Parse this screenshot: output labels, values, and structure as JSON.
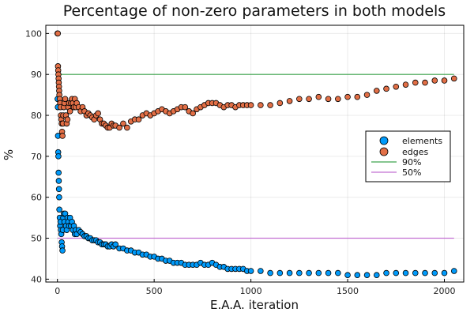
{
  "chart_data": {
    "type": "scatter",
    "title": "Percentage of non-zero parameters in both models",
    "xlabel": "E.A.A. iteration",
    "ylabel": "%",
    "xlim": [
      -60,
      2100
    ],
    "ylim": [
      39.3,
      102
    ],
    "xticks": [
      0,
      500,
      1000,
      1500,
      2000
    ],
    "yticks": [
      40,
      50,
      60,
      70,
      80,
      90,
      100
    ],
    "grid": true,
    "legend_position": "right",
    "series": [
      {
        "name": "elements",
        "kind": "scatter",
        "color": "#009AFA",
        "x": [
          1,
          1,
          2,
          3,
          4,
          5,
          6,
          7,
          8,
          9,
          10,
          12,
          14,
          16,
          18,
          20,
          22,
          24,
          26,
          28,
          30,
          33,
          36,
          40,
          44,
          48,
          52,
          56,
          60,
          65,
          70,
          75,
          80,
          85,
          90,
          95,
          100,
          110,
          120,
          130,
          140,
          150,
          160,
          170,
          180,
          190,
          200,
          210,
          220,
          230,
          240,
          250,
          260,
          270,
          280,
          290,
          300,
          320,
          340,
          360,
          380,
          400,
          420,
          440,
          460,
          480,
          500,
          520,
          540,
          560,
          580,
          600,
          620,
          640,
          660,
          680,
          700,
          720,
          740,
          760,
          780,
          800,
          820,
          840,
          860,
          880,
          900,
          920,
          940,
          960,
          980,
          1000,
          1050,
          1100,
          1150,
          1200,
          1250,
          1300,
          1350,
          1400,
          1450,
          1500,
          1550,
          1600,
          1650,
          1700,
          1750,
          1800,
          1850,
          1900,
          1950,
          2000,
          2050
        ],
        "y": [
          100,
          84,
          82,
          75,
          71,
          70,
          66,
          64,
          62,
          60,
          57,
          55,
          53,
          54,
          52,
          51,
          49,
          48,
          47,
          52,
          55,
          56,
          54,
          56,
          53,
          52,
          55,
          54,
          53,
          55,
          53,
          54,
          52,
          53,
          51,
          52,
          51,
          52,
          51.5,
          51,
          50.5,
          50.5,
          50,
          50,
          49.5,
          49.5,
          49.5,
          49,
          49,
          48.5,
          48.5,
          48.5,
          48,
          48,
          48.5,
          48,
          48.5,
          47.5,
          47.5,
          47,
          47,
          46.5,
          46.5,
          46,
          46,
          45.5,
          45.5,
          45,
          45,
          44.5,
          44.5,
          44,
          44,
          44,
          43.5,
          43.5,
          43.5,
          43.5,
          44,
          43.5,
          43.5,
          44,
          43.5,
          43,
          43,
          42.5,
          42.5,
          42.5,
          42.5,
          42.5,
          42,
          42,
          42,
          41.5,
          41.5,
          41.5,
          41.5,
          41.5,
          41.5,
          41.5,
          41.5,
          41,
          41,
          41,
          41,
          41.5,
          41.5,
          41.5,
          41.5,
          41.5,
          41.5,
          41.5,
          42
        ]
      },
      {
        "name": "edges",
        "kind": "scatter",
        "color": "#E26F46",
        "x": [
          1,
          2,
          3,
          4,
          5,
          6,
          7,
          8,
          9,
          10,
          12,
          14,
          16,
          18,
          20,
          22,
          24,
          26,
          28,
          30,
          33,
          36,
          40,
          44,
          48,
          52,
          56,
          60,
          65,
          70,
          75,
          80,
          85,
          90,
          95,
          100,
          110,
          120,
          130,
          140,
          150,
          160,
          170,
          180,
          190,
          200,
          210,
          220,
          230,
          240,
          250,
          260,
          270,
          280,
          290,
          300,
          320,
          340,
          360,
          380,
          400,
          420,
          440,
          460,
          480,
          500,
          520,
          540,
          560,
          580,
          600,
          620,
          640,
          660,
          680,
          700,
          720,
          740,
          760,
          780,
          800,
          820,
          840,
          860,
          880,
          900,
          920,
          940,
          960,
          980,
          1000,
          1050,
          1100,
          1150,
          1200,
          1250,
          1300,
          1350,
          1400,
          1450,
          1500,
          1550,
          1600,
          1650,
          1700,
          1750,
          1800,
          1850,
          1900,
          1950,
          2000,
          2050
        ],
        "y": [
          100,
          100,
          92,
          91,
          90,
          89,
          88,
          87,
          86,
          85,
          84,
          83,
          82,
          80,
          79,
          78,
          76,
          75,
          78,
          80,
          82,
          83,
          84,
          80,
          78,
          79,
          82,
          83,
          81,
          83,
          84,
          83,
          82,
          84,
          82,
          83,
          82,
          81,
          82,
          81,
          80,
          80.5,
          80,
          79.5,
          79,
          80,
          80.5,
          79,
          78,
          78,
          77.5,
          77,
          77,
          78,
          77.5,
          77.5,
          77,
          78,
          77,
          78.5,
          79,
          79,
          80,
          80.5,
          80,
          80.5,
          81,
          81.5,
          81,
          80.5,
          81,
          81.5,
          82,
          82,
          81,
          80.5,
          81.5,
          82,
          82.5,
          83,
          83,
          83,
          82.5,
          82,
          82.5,
          82.5,
          82,
          82.5,
          82.5,
          82.5,
          82.5,
          82.5,
          82.5,
          83,
          83.5,
          84,
          84,
          84.5,
          84,
          84,
          84.5,
          84.5,
          85,
          86,
          86.5,
          87,
          87.5,
          88,
          88,
          88.5,
          88.5,
          89
        ]
      },
      {
        "name": "90%",
        "kind": "hline",
        "color": "#3DA44D",
        "x": [
          0,
          2050
        ],
        "y": [
          90,
          90
        ]
      },
      {
        "name": "50%",
        "kind": "hline",
        "color": "#C271D2",
        "x": [
          0,
          2050
        ],
        "y": [
          50,
          50
        ]
      }
    ]
  }
}
